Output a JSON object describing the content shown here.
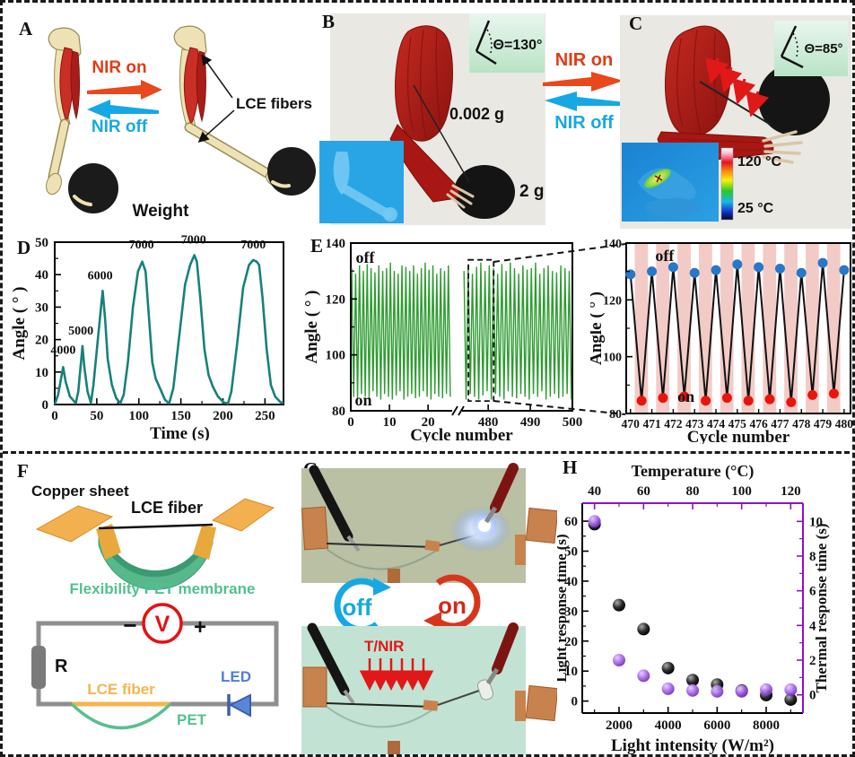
{
  "figure": {
    "panel_labels": {
      "A": "A",
      "B": "B",
      "C": "C",
      "D": "D",
      "E": "E",
      "F": "F",
      "G": "G",
      "H": "H"
    }
  },
  "palette": {
    "nir_red": "#e8481c",
    "nir_blue": "#16a8e2",
    "teal_line": "#17817a",
    "green_line": "#2f9b32",
    "dot_blue": "#2877c9",
    "dot_red": "#e8150c",
    "stripe_pink": "#f2cbc7",
    "purple_axis": "#8812cb",
    "purple_sphere": "#a566e6",
    "copper": "#c8824e",
    "membrane_green": "#52c08e",
    "circuit_gray": "#8f8f8f",
    "led_blue": "#4f7ed6",
    "volt_red": "#e51212",
    "arm_red": "#b01d16",
    "bone": "#eee2b4",
    "photo_bg": "#eae8e3",
    "thermal_blue": "#2196dd",
    "photo_g_top": "#b9c0a4",
    "photo_g_bottom": "#c2e3d3"
  },
  "panelA": {
    "nir_on": "NIR on",
    "nir_off": "NIR off",
    "lce_fibers": "LCE fibers",
    "weight": "Weight"
  },
  "panelB": {
    "angle_badge": "Θ=130°",
    "fiber_mass": "0.002 g",
    "weight_mass": "2 g"
  },
  "nir_toggle": {
    "on": "NIR on",
    "off": "NIR off"
  },
  "panelC": {
    "angle_badge": "Θ=85°",
    "temp_high": "120 °C",
    "temp_low": "25 °C"
  },
  "panelF": {
    "copper_sheet": "Copper sheet",
    "lce_fiber": "LCE fiber",
    "membrane": "Flexibility PET membrane",
    "voltmeter": "V",
    "minus": "−",
    "plus": "+",
    "resistor": "R",
    "led": "LED",
    "lce_fiber_circuit": "LCE fiber",
    "pet": "PET"
  },
  "panelG": {
    "off": "off",
    "on": "on",
    "tnir": "T/NIR"
  },
  "chart_data": [
    {
      "id": "chartD",
      "type": "line",
      "title": "",
      "xlabel": "Time (s)",
      "ylabel": "Angle ( ° )",
      "xlim": [
        0,
        272
      ],
      "ylim": [
        0,
        50
      ],
      "xticks": [
        0,
        50,
        100,
        150,
        200,
        250
      ],
      "yticks": [
        0,
        10,
        20,
        30,
        40,
        50
      ],
      "x_minor_step": 25,
      "y_minor_step": 5,
      "color": "#17817a",
      "grid": false,
      "legend": "none",
      "points": [
        [
          0,
          0
        ],
        [
          4,
          3
        ],
        [
          10,
          11.5
        ],
        [
          13,
          7
        ],
        [
          18,
          2.5
        ],
        [
          25,
          0.4
        ],
        [
          28,
          4
        ],
        [
          33,
          18
        ],
        [
          35,
          12
        ],
        [
          39,
          4
        ],
        [
          43,
          0.5
        ],
        [
          46,
          6
        ],
        [
          52,
          22
        ],
        [
          57,
          35
        ],
        [
          60,
          26
        ],
        [
          63,
          14
        ],
        [
          68,
          6
        ],
        [
          73,
          2
        ],
        [
          78,
          0.4
        ],
        [
          82,
          3
        ],
        [
          87,
          13
        ],
        [
          93,
          30
        ],
        [
          99,
          41
        ],
        [
          104,
          44
        ],
        [
          108,
          41
        ],
        [
          112,
          27
        ],
        [
          116,
          13
        ],
        [
          120,
          8
        ],
        [
          126,
          4.5
        ],
        [
          131,
          1.5
        ],
        [
          136,
          0.3
        ],
        [
          141,
          5
        ],
        [
          148,
          21
        ],
        [
          155,
          37
        ],
        [
          161,
          43
        ],
        [
          166,
          46
        ],
        [
          169,
          44
        ],
        [
          173,
          33
        ],
        [
          178,
          17
        ],
        [
          183,
          9
        ],
        [
          188,
          5.5
        ],
        [
          194,
          2.5
        ],
        [
          201,
          0.6
        ],
        [
          206,
          0.3
        ],
        [
          210,
          4
        ],
        [
          217,
          19
        ],
        [
          224,
          36
        ],
        [
          231,
          43
        ],
        [
          236,
          44.5
        ],
        [
          240,
          44
        ],
        [
          243,
          43
        ],
        [
          247,
          33
        ],
        [
          252,
          17
        ],
        [
          257,
          6
        ],
        [
          262,
          2.5
        ],
        [
          268,
          0.8
        ],
        [
          272,
          0.3
        ]
      ],
      "annotations": [
        {
          "text": "4000",
          "x": 10,
          "y": 14.5
        },
        {
          "text": "5000",
          "x": 31,
          "y": 20.5
        },
        {
          "text": "6000",
          "x": 54,
          "y": 37.5
        },
        {
          "text": "7000",
          "x": 103,
          "y": 47
        },
        {
          "text": "7000",
          "x": 165,
          "y": 48.5
        },
        {
          "text": "7000",
          "x": 236,
          "y": 47
        }
      ]
    },
    {
      "id": "chartE",
      "type": "line-break",
      "xlabel": "Cycle number",
      "ylabel": "Angle ( ° )",
      "ylim": [
        80,
        140
      ],
      "yticks": [
        80,
        100,
        120,
        140
      ],
      "y_minor": [
        90,
        110,
        130
      ],
      "seg1": {
        "range": [
          0,
          26
        ],
        "ticks": [
          0,
          10,
          20
        ]
      },
      "seg2": {
        "range": [
          474,
          500
        ],
        "ticks": [
          480,
          490,
          500
        ]
      },
      "off_label": "off",
      "on_label": "on",
      "color": "#2f9b32",
      "tops1": [
        131,
        129,
        132,
        130,
        132.5,
        131,
        129.5,
        132,
        130,
        131,
        133,
        130,
        129,
        132,
        131.5,
        130,
        132,
        129,
        131,
        133,
        130.5,
        132,
        129,
        131,
        130,
        132
      ],
      "bots1": [
        85,
        84,
        86,
        85,
        84.5,
        87,
        85,
        84,
        86,
        85,
        84,
        85.5,
        87,
        84,
        85,
        86,
        84.5,
        85,
        87,
        85,
        84,
        86,
        85,
        84.5,
        86,
        85
      ],
      "tops2": [
        130,
        132,
        129,
        131.5,
        133,
        130,
        132,
        131,
        129,
        132.5,
        130,
        133,
        131,
        129,
        132,
        130.5,
        131,
        133,
        129,
        131,
        132,
        130,
        129.5,
        132,
        131,
        130
      ],
      "bots2": [
        84,
        86,
        85,
        84,
        85.5,
        87,
        84,
        86,
        85,
        84,
        87,
        85,
        84.5,
        86,
        85,
        84,
        86,
        85,
        87,
        84,
        85,
        86,
        84.5,
        85,
        86,
        84
      ],
      "zoom_box": {
        "x0": 475.3,
        "x1": 481.3,
        "y0": 83.5,
        "y1": 134
      }
    },
    {
      "id": "chartEzoom",
      "type": "scatter-line",
      "xlabel": "Cycle number",
      "ylabel": "Angle ( ° )",
      "xlim": [
        469.8,
        480.3
      ],
      "ylim": [
        80,
        140
      ],
      "xticks": [
        470,
        471,
        472,
        473,
        474,
        475,
        476,
        477,
        478,
        479,
        480
      ],
      "yticks": [
        80,
        100,
        120,
        140
      ],
      "y_minor": [
        90,
        110,
        130
      ],
      "off_label": "off",
      "on_label": "on",
      "stripe_color": "#f2cbc7",
      "blue_color": "#2877c9",
      "red_color": "#e8150c",
      "line_color": "#111111",
      "stripe_start_offset": 0.2,
      "stripe_width": 0.62,
      "blue_points": [
        [
          470,
          129
        ],
        [
          471,
          130
        ],
        [
          472,
          131.5
        ],
        [
          473,
          129.5
        ],
        [
          474,
          130.5
        ],
        [
          475,
          132.5
        ],
        [
          476,
          131.5
        ],
        [
          477,
          131
        ],
        [
          478,
          129.5
        ],
        [
          479,
          133
        ],
        [
          480,
          130.5
        ]
      ],
      "red_points": [
        [
          470.52,
          84.5
        ],
        [
          471.52,
          85.5
        ],
        [
          472.52,
          86
        ],
        [
          473.52,
          84.5
        ],
        [
          474.52,
          85.5
        ],
        [
          475.52,
          84.5
        ],
        [
          476.52,
          85
        ],
        [
          477.52,
          84
        ],
        [
          478.52,
          86.5
        ],
        [
          479.52,
          87
        ]
      ]
    },
    {
      "id": "chartH",
      "type": "dual-scatter",
      "top_label": "Temperature (°C)",
      "bottom_label": "Light intensity (W/m²)",
      "left_label": "Light response time (s)",
      "right_label": "Thermal response time (s)",
      "bottom_lim": [
        500,
        9500
      ],
      "bottom_ticks": [
        2000,
        4000,
        6000,
        8000
      ],
      "bottom_minor": [
        1000,
        3000,
        5000,
        7000,
        9000
      ],
      "top_lim": [
        35,
        125
      ],
      "top_ticks": [
        40,
        60,
        80,
        100,
        120
      ],
      "top_minor": [
        50,
        70,
        90,
        110
      ],
      "left_lim": [
        -4,
        66
      ],
      "left_ticks": [
        0,
        10,
        20,
        30,
        40,
        50,
        60
      ],
      "left_minor_step": 5,
      "right_lim": [
        -1.05,
        11.05
      ],
      "right_ticks": [
        0,
        2,
        4,
        6,
        8,
        10
      ],
      "right_minor_step": 1,
      "secondary_color": "#8812cb",
      "black_color": "#222222",
      "purple_color": "#a566e6",
      "black_series": {
        "name": "Light response time",
        "x": [
          1000,
          2000,
          3000,
          4000,
          5000,
          6000,
          7000,
          8000,
          9000
        ],
        "y": [
          59,
          32,
          24,
          11,
          7,
          5.5,
          3.5,
          2,
          0.5
        ]
      },
      "purple_series": {
        "name": "Thermal response time",
        "x_temperature": [
          40,
          50,
          60,
          70,
          80,
          90,
          100,
          110,
          120
        ],
        "y": [
          10,
          2,
          1.1,
          0.35,
          0.25,
          0.2,
          0.2,
          0.3,
          0.3
        ]
      }
    }
  ]
}
